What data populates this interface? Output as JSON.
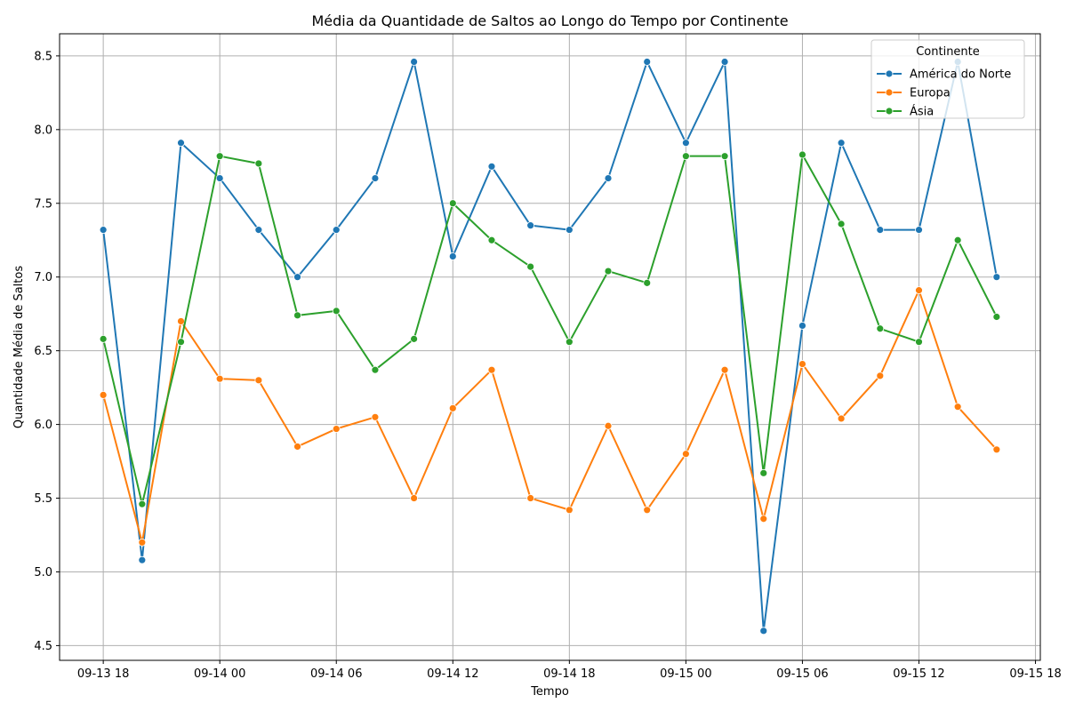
{
  "chart_data": {
    "type": "line",
    "title": "Média da Quantidade de Saltos ao Longo do Tempo por Continente",
    "xlabel": "Tempo",
    "ylabel": "Quantidade Média de Saltos",
    "x_tick_labels": [
      "09-13 18",
      "09-14 00",
      "09-14 06",
      "09-14 12",
      "09-14 18",
      "09-15 00",
      "09-15 06",
      "09-15 12",
      "09-15 18"
    ],
    "x_tick_hours": [
      0,
      6,
      12,
      18,
      24,
      30,
      36,
      42,
      48
    ],
    "x_start": "2023-09-13 18:00",
    "x_interval_hours": 2,
    "xlim_hours": [
      -2.25,
      48.25
    ],
    "y_ticks": [
      4.5,
      5.0,
      5.5,
      6.0,
      6.5,
      7.0,
      7.5,
      8.0,
      8.5
    ],
    "ylim": [
      4.4,
      8.65
    ],
    "grid": true,
    "legend": {
      "title": "Continente",
      "position": "top-right"
    },
    "series": [
      {
        "name": "América do Norte",
        "color": "#1f77b4",
        "values": [
          7.32,
          5.08,
          7.91,
          7.67,
          7.32,
          7.0,
          7.32,
          7.67,
          8.46,
          7.14,
          7.75,
          7.35,
          7.32,
          7.67,
          8.46,
          7.91,
          8.46,
          4.6,
          6.67,
          7.91,
          7.32,
          7.32,
          8.46,
          7.0
        ]
      },
      {
        "name": "Europa",
        "color": "#ff7f0e",
        "values": [
          6.2,
          5.2,
          6.7,
          6.31,
          6.3,
          5.85,
          5.97,
          6.05,
          5.5,
          6.11,
          6.37,
          5.5,
          5.42,
          5.99,
          5.42,
          5.8,
          6.37,
          5.36,
          6.41,
          6.04,
          6.33,
          6.91,
          6.12,
          5.83
        ]
      },
      {
        "name": "Ásia",
        "color": "#2ca02c",
        "values": [
          6.58,
          5.46,
          6.56,
          7.82,
          7.77,
          6.74,
          6.77,
          6.37,
          6.58,
          7.5,
          7.25,
          7.07,
          6.56,
          7.04,
          6.96,
          7.82,
          7.82,
          5.67,
          7.83,
          7.36,
          6.65,
          6.56,
          7.25,
          6.73
        ]
      }
    ]
  }
}
